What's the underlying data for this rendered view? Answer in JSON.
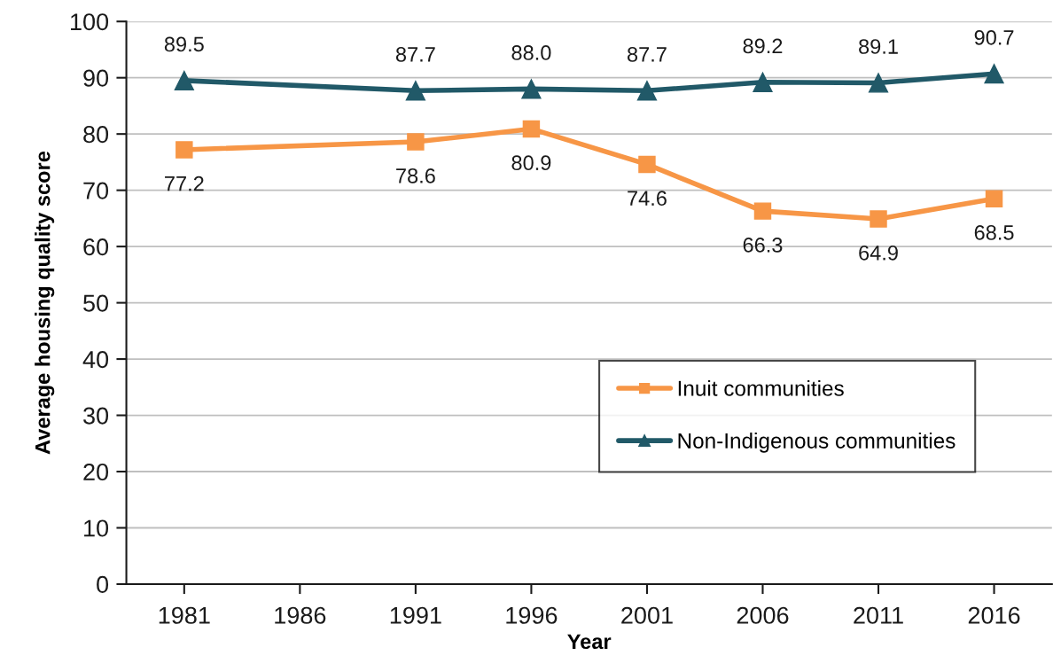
{
  "chart_data": {
    "type": "line",
    "xlabel": "Year",
    "ylabel": "Average housing quality score",
    "xlim": [
      1978.5,
      2018.5
    ],
    "xticks": [
      1981,
      1986,
      1991,
      1996,
      2001,
      2006,
      2011,
      2016
    ],
    "ylim": [
      0,
      100
    ],
    "yticks": [
      0,
      10,
      20,
      30,
      40,
      50,
      60,
      70,
      80,
      90,
      100
    ],
    "grid": "y",
    "legend": "center right",
    "line_style": "solid",
    "series": [
      {
        "name": "Inuit communities",
        "color": "#f79646",
        "marker": "square",
        "x": [
          1981,
          1991,
          1996,
          2001,
          2006,
          2011,
          2016
        ],
        "values": [
          77.2,
          78.6,
          80.9,
          74.6,
          66.3,
          64.9,
          68.5
        ],
        "value_labels": [
          "77.2",
          "78.6",
          "80.9",
          "74.6",
          "66.3",
          "64.9",
          "68.5"
        ]
      },
      {
        "name": "Non-Indigenous communities",
        "color": "#215968",
        "marker": "triangle",
        "x": [
          1981,
          1991,
          1996,
          2001,
          2006,
          2011,
          2016
        ],
        "values": [
          89.5,
          87.7,
          88.0,
          87.7,
          89.2,
          89.1,
          90.7
        ],
        "value_labels": [
          "89.5",
          "87.7",
          "88.0",
          "87.7",
          "89.2",
          "89.1",
          "90.7"
        ]
      }
    ]
  }
}
